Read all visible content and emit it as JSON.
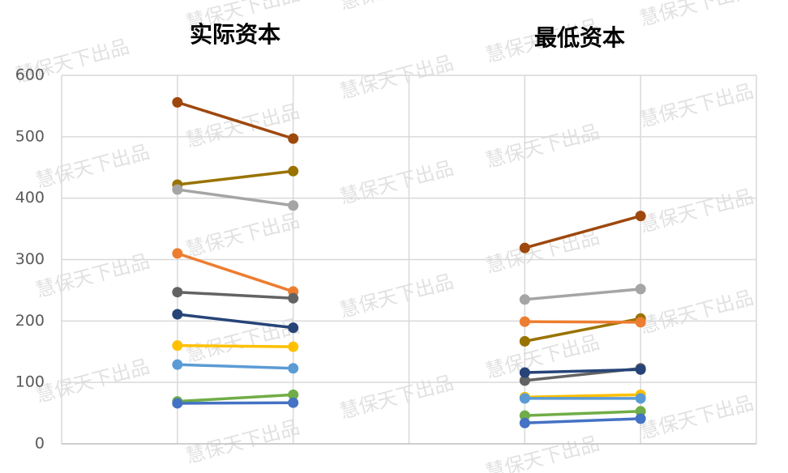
{
  "chart_data": {
    "type": "line",
    "panel_titles": [
      "实际资本",
      "最低资本"
    ],
    "watermark": "慧保天下出品",
    "categories": [
      null,
      null,
      null,
      null,
      null,
      null,
      null
    ],
    "ylim": [
      0,
      600
    ],
    "yticks": [
      0,
      100,
      200,
      300,
      400,
      500,
      600
    ],
    "grid": true,
    "series": [
      {
        "color": "#9e480e",
        "values": [
          null,
          556,
          497,
          null,
          319,
          371,
          null
        ]
      },
      {
        "color": "#997300",
        "values": [
          null,
          422,
          444,
          null,
          167,
          204,
          null
        ]
      },
      {
        "color": "#a5a5a5",
        "values": [
          null,
          414,
          388,
          null,
          235,
          252,
          null
        ]
      },
      {
        "color": "#ed7d31",
        "values": [
          null,
          310,
          248,
          null,
          199,
          198,
          null
        ]
      },
      {
        "color": "#636363",
        "values": [
          null,
          247,
          237,
          null,
          103,
          123,
          null
        ]
      },
      {
        "color": "#264478",
        "values": [
          null,
          211,
          189,
          null,
          116,
          121,
          null
        ]
      },
      {
        "color": "#ffc000",
        "values": [
          null,
          160,
          158,
          null,
          76,
          80,
          null
        ]
      },
      {
        "color": "#5b9bd5",
        "values": [
          null,
          129,
          123,
          null,
          74,
          74,
          null
        ]
      },
      {
        "color": "#70ad47",
        "values": [
          null,
          69,
          80,
          null,
          46,
          53,
          null
        ]
      },
      {
        "color": "#4472c4",
        "values": [
          null,
          66,
          67,
          null,
          34,
          41,
          null
        ]
      }
    ]
  }
}
